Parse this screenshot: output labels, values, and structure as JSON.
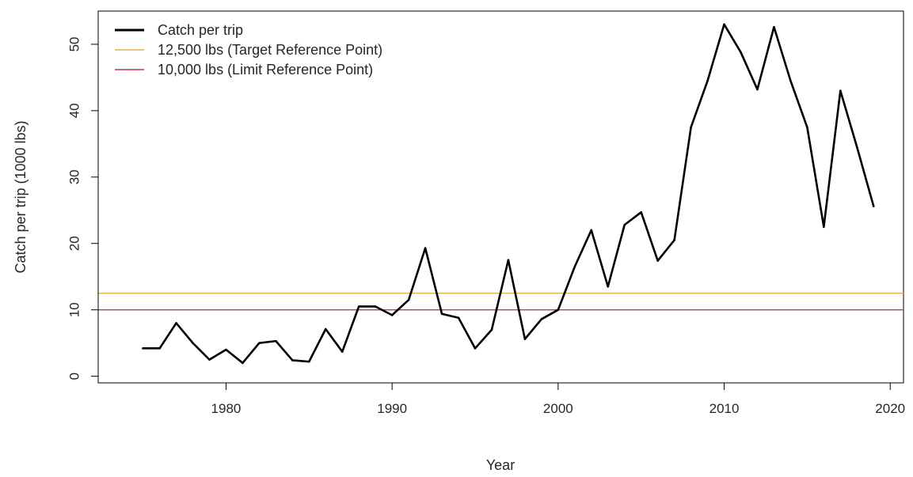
{
  "chart_data": {
    "type": "line",
    "xlabel": "Year",
    "ylabel": "Catch per trip (1000 lbs)",
    "xlim": [
      1972.3,
      2020.8
    ],
    "ylim": [
      -1,
      55
    ],
    "x_ticks": [
      1980,
      1990,
      2000,
      2010,
      2020
    ],
    "y_ticks": [
      0,
      10,
      20,
      30,
      40,
      50
    ],
    "grid": false,
    "legend_position": "top-left",
    "series": [
      {
        "name": "Catch per trip",
        "color": "#000000",
        "x": [
          1975,
          1976,
          1977,
          1978,
          1979,
          1980,
          1981,
          1982,
          1983,
          1984,
          1985,
          1986,
          1987,
          1988,
          1989,
          1990,
          1991,
          1992,
          1993,
          1994,
          1995,
          1996,
          1997,
          1998,
          1999,
          2000,
          2001,
          2002,
          2003,
          2004,
          2005,
          2006,
          2007,
          2008,
          2009,
          2010,
          2011,
          2012,
          2013,
          2014,
          2015,
          2016,
          2017,
          2018,
          2019
        ],
        "y": [
          4.2,
          4.2,
          8.0,
          5.0,
          2.5,
          4.0,
          2.0,
          5.0,
          5.3,
          2.4,
          2.2,
          7.1,
          3.7,
          10.5,
          10.5,
          9.2,
          11.5,
          19.3,
          9.4,
          8.8,
          4.2,
          7.0,
          17.5,
          5.6,
          8.6,
          10.0,
          16.5,
          22.0,
          13.5,
          22.8,
          24.7,
          17.4,
          20.5,
          37.5,
          44.5,
          53.0,
          48.8,
          43.2,
          52.6,
          44.5,
          37.5,
          22.5,
          43.0,
          34.5,
          25.6
        ]
      }
    ],
    "reference_lines": [
      {
        "name": "12,500 lbs (Target Reference Point)",
        "value": 12.5,
        "color": "#e0b14a"
      },
      {
        "name": "10,000 lbs (Limit Reference Point)",
        "value": 10.0,
        "color": "#c4394b"
      }
    ]
  }
}
